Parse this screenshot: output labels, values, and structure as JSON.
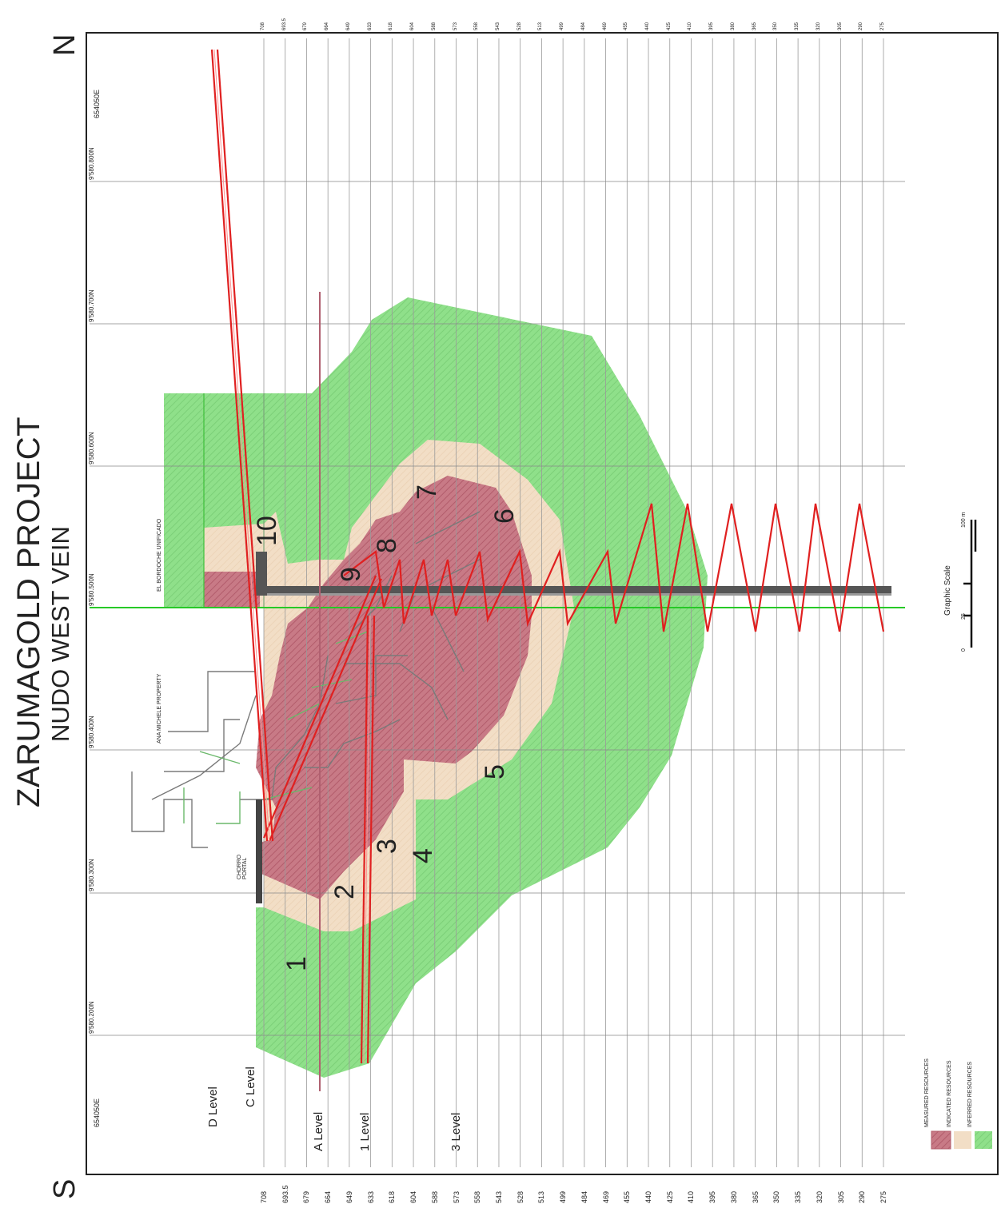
{
  "title": {
    "line1": "ZARUMAGOLD PROJECT",
    "line2": "NUDO WEST VEIN"
  },
  "compass": {
    "south": "S",
    "north": "N"
  },
  "colors": {
    "measured": "#c87a86",
    "indicated": "#f2dec6",
    "inferred": "#8fe08a",
    "ramp": "#e02020",
    "grid": "#9a9a9a"
  },
  "elevations_bottom": [
    "708",
    "693.5",
    "679",
    "664",
    "649",
    "633",
    "618",
    "604",
    "588",
    "573",
    "558",
    "543",
    "528",
    "513",
    "499",
    "484",
    "469",
    "455",
    "440",
    "425",
    "410",
    "395",
    "380",
    "365",
    "350",
    "335",
    "320",
    "305",
    "290",
    "275"
  ],
  "elevations_top": [
    "708",
    "693.5",
    "679",
    "664",
    "649",
    "633",
    "618",
    "604",
    "588",
    "573",
    "558",
    "543",
    "528",
    "513",
    "499",
    "484",
    "469",
    "455",
    "440",
    "425",
    "410",
    "395",
    "380",
    "365",
    "350",
    "335",
    "320",
    "305",
    "290",
    "275"
  ],
  "easting_labels": {
    "south": "654050E",
    "north": "654050E"
  },
  "northing_labels": [
    "9'580.200N",
    "9'580.300N",
    "9'580.400N",
    "9'580.500N",
    "9'580.600N",
    "9'580.700N",
    "9'580.800N"
  ],
  "levels": [
    "D Level",
    "C Level",
    "A Level",
    "1 Level",
    "3 Level"
  ],
  "property_labels": {
    "ana": "ANA MICHELE PROPERTY",
    "bor": "EL BORDOCHE UNIFICADO"
  },
  "portal_label": "CHORRO PORTAL",
  "block_numbers": [
    "1",
    "2",
    "3",
    "4",
    "5",
    "6",
    "7",
    "8",
    "9",
    "10"
  ],
  "legend": {
    "measured": "MEASURED RESOURCES",
    "indicated": "INDICATED RESOURCES",
    "inferred": "INFERRED RESOURCES"
  },
  "scale": {
    "title": "Graphic Scale",
    "zero": "0",
    "mid": "25",
    "end": "100 m"
  }
}
